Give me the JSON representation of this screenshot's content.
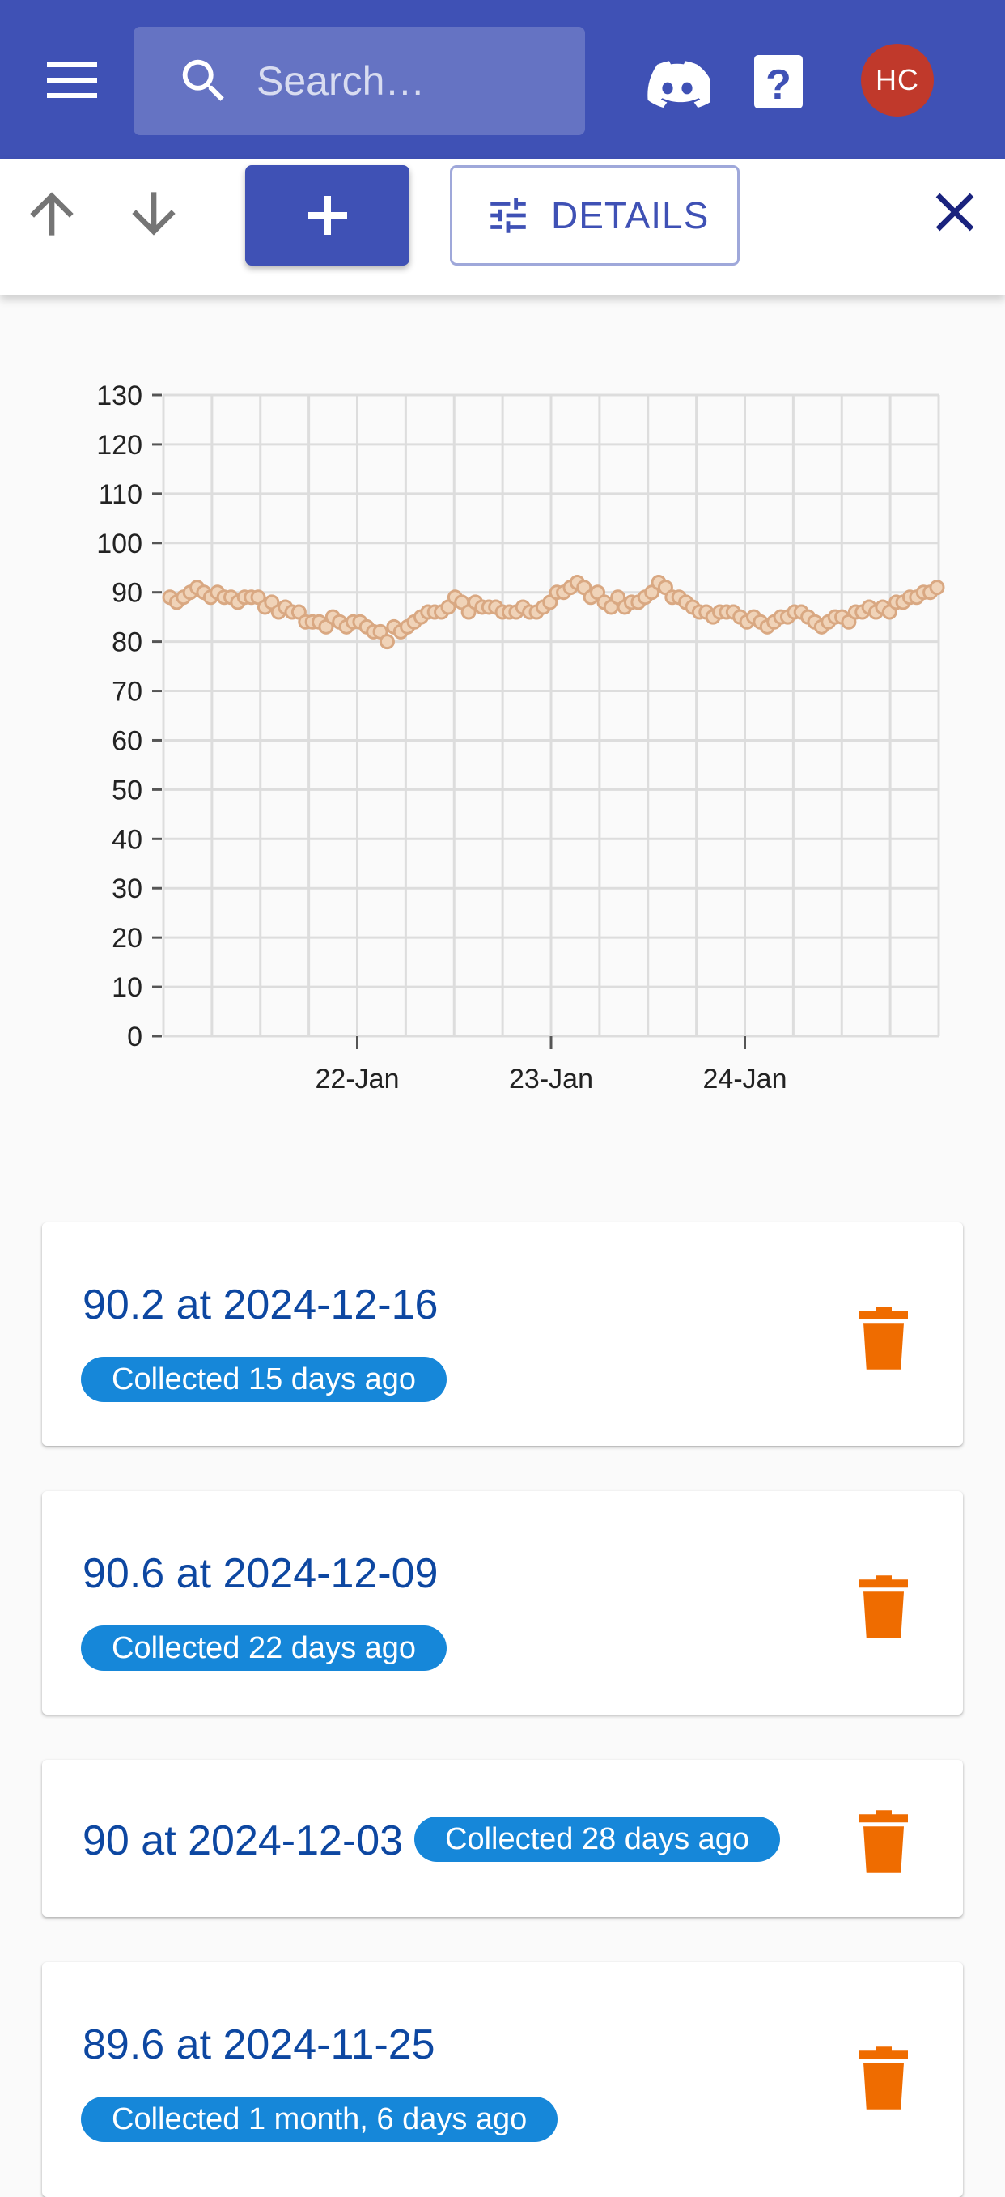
{
  "appbar": {
    "search_placeholder": "Search…",
    "avatar_initials": "HC",
    "color": "#3f51b5"
  },
  "toolbar": {
    "details_label": "DETAILS"
  },
  "colors": {
    "primary": "#3f51b5",
    "badge": "#1687d9",
    "delete": "#ef6c00",
    "avatar": "#c0392b",
    "point_fill": "#f0d3b8",
    "point_stroke": "#d9a882"
  },
  "chart_data": {
    "type": "scatter",
    "x_ticks": [
      "22-Jan",
      "23-Jan",
      "24-Jan"
    ],
    "y_ticks": [
      0,
      10,
      20,
      30,
      40,
      50,
      60,
      70,
      80,
      90,
      100,
      110,
      120,
      130
    ],
    "ylim": [
      0,
      130
    ],
    "xlim_days": [
      21,
      25
    ],
    "grid": true,
    "values": [
      89,
      88,
      89,
      90,
      91,
      90,
      89,
      90,
      89,
      89,
      88,
      89,
      89,
      89,
      87,
      88,
      86,
      87,
      86,
      86,
      84,
      84,
      84,
      83,
      85,
      84,
      83,
      84,
      84,
      83,
      82,
      82,
      80,
      83,
      82,
      83,
      84,
      85,
      86,
      86,
      86,
      87,
      89,
      88,
      86,
      88,
      87,
      87,
      87,
      86,
      86,
      86,
      87,
      86,
      86,
      87,
      88,
      90,
      90,
      91,
      92,
      91,
      89,
      90,
      88,
      87,
      89,
      87,
      88,
      88,
      89,
      90,
      92,
      91,
      89,
      89,
      88,
      87,
      86,
      86,
      85,
      86,
      86,
      86,
      85,
      84,
      85,
      84,
      83,
      84,
      85,
      85,
      86,
      86,
      85,
      84,
      83,
      84,
      85,
      85,
      84,
      86,
      86,
      87,
      86,
      87,
      86,
      88,
      88,
      89,
      89,
      90,
      90,
      91
    ]
  },
  "entries": [
    {
      "title": "90.2 at 2024-12-16",
      "badge": "Collected 15 days ago"
    },
    {
      "title": "90.6 at 2024-12-09",
      "badge": "Collected 22 days ago"
    },
    {
      "title": "90 at 2024-12-03",
      "badge": "Collected 28 days ago"
    },
    {
      "title": "89.6 at 2024-11-25",
      "badge": "Collected 1 month, 6 days ago"
    }
  ]
}
